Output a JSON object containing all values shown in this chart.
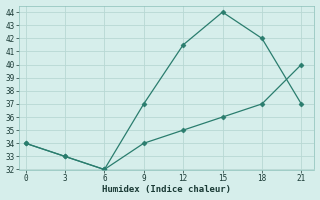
{
  "xlabel": "Humidex (Indice chaleur)",
  "line1_x": [
    0,
    3,
    6,
    9,
    12,
    15,
    18,
    21
  ],
  "line1_y": [
    34,
    33,
    32,
    37,
    41.5,
    44,
    42,
    37
  ],
  "line2_x": [
    0,
    3,
    6,
    9,
    12,
    15,
    18,
    21
  ],
  "line2_y": [
    34,
    33,
    32,
    34,
    35,
    36,
    37,
    40
  ],
  "line_color": "#2a7d6e",
  "bg_color": "#d6eeeb",
  "grid_color": "#b8d8d4",
  "xlim": [
    -0.5,
    22
  ],
  "ylim": [
    32,
    44.5
  ],
  "xticks": [
    0,
    3,
    6,
    9,
    12,
    15,
    18,
    21
  ],
  "yticks": [
    32,
    33,
    34,
    35,
    36,
    37,
    38,
    39,
    40,
    41,
    42,
    43,
    44
  ],
  "marker": "D",
  "marker_size": 2.5,
  "linewidth": 0.9,
  "tick_fontsize": 5.5,
  "xlabel_fontsize": 6.5
}
